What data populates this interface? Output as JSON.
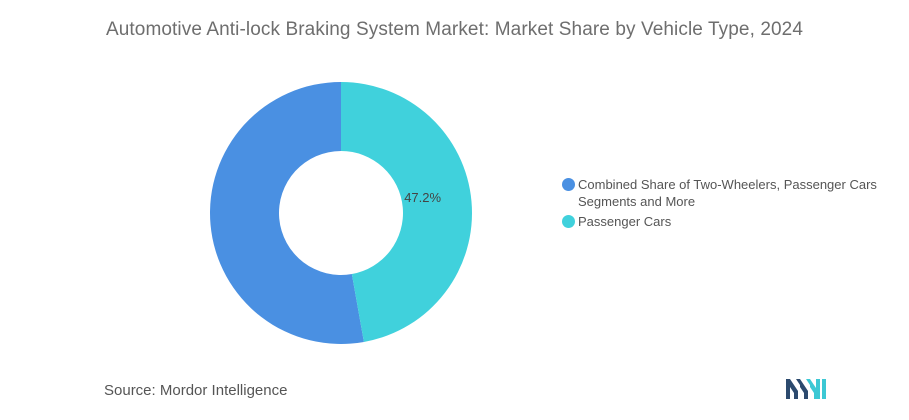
{
  "chart_data": {
    "type": "pie",
    "title": "Automotive Anti-lock Braking System Market: Market Share by Vehicle Type, 2024",
    "donut": true,
    "slices": [
      {
        "label": "Combined Share of Two-Wheelers, Passenger Cars Segments and More",
        "value": 52.8,
        "color": "#4a90e2",
        "data_label": ""
      },
      {
        "label": "Passenger Cars",
        "value": 47.2,
        "color": "#40d1dc",
        "data_label": "47.2%"
      }
    ],
    "legend_position": "right"
  },
  "source": {
    "label": "Source:",
    "text": "Mordor Intelligence"
  },
  "logo": {
    "colors": [
      "#2c4a6e",
      "#3cc8d4"
    ]
  }
}
